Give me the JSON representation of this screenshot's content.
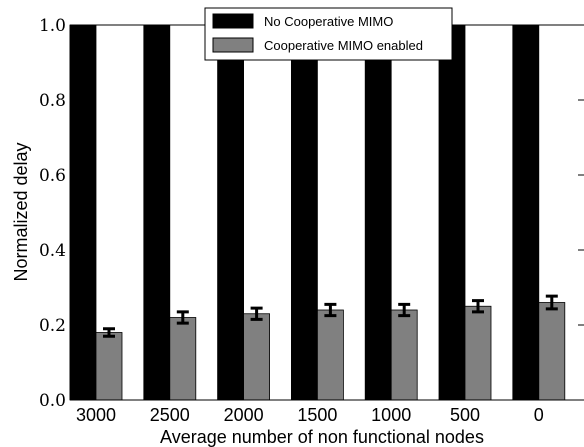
{
  "chart_data": {
    "type": "bar",
    "title": "",
    "xlabel": "Average number of non functional nodes",
    "ylabel": "Normalized delay",
    "categories": [
      "3000",
      "2500",
      "2000",
      "1500",
      "1000",
      "500",
      "0"
    ],
    "ylim": [
      0.0,
      1.0
    ],
    "yticks": [
      "0.0",
      "0.2",
      "0.4",
      "0.6",
      "0.8",
      "1.0"
    ],
    "grid": false,
    "legend_position": "top-center",
    "series": [
      {
        "name": "No Cooperative MIMO",
        "color": "#000000",
        "values": [
          1.0,
          1.0,
          1.0,
          1.0,
          1.0,
          1.0,
          1.0
        ]
      },
      {
        "name": "Cooperative MIMO enabled",
        "color": "#808080",
        "values": [
          0.18,
          0.22,
          0.23,
          0.24,
          0.24,
          0.25,
          0.26
        ],
        "error": [
          0.01,
          0.015,
          0.015,
          0.015,
          0.015,
          0.015,
          0.017
        ]
      }
    ]
  }
}
